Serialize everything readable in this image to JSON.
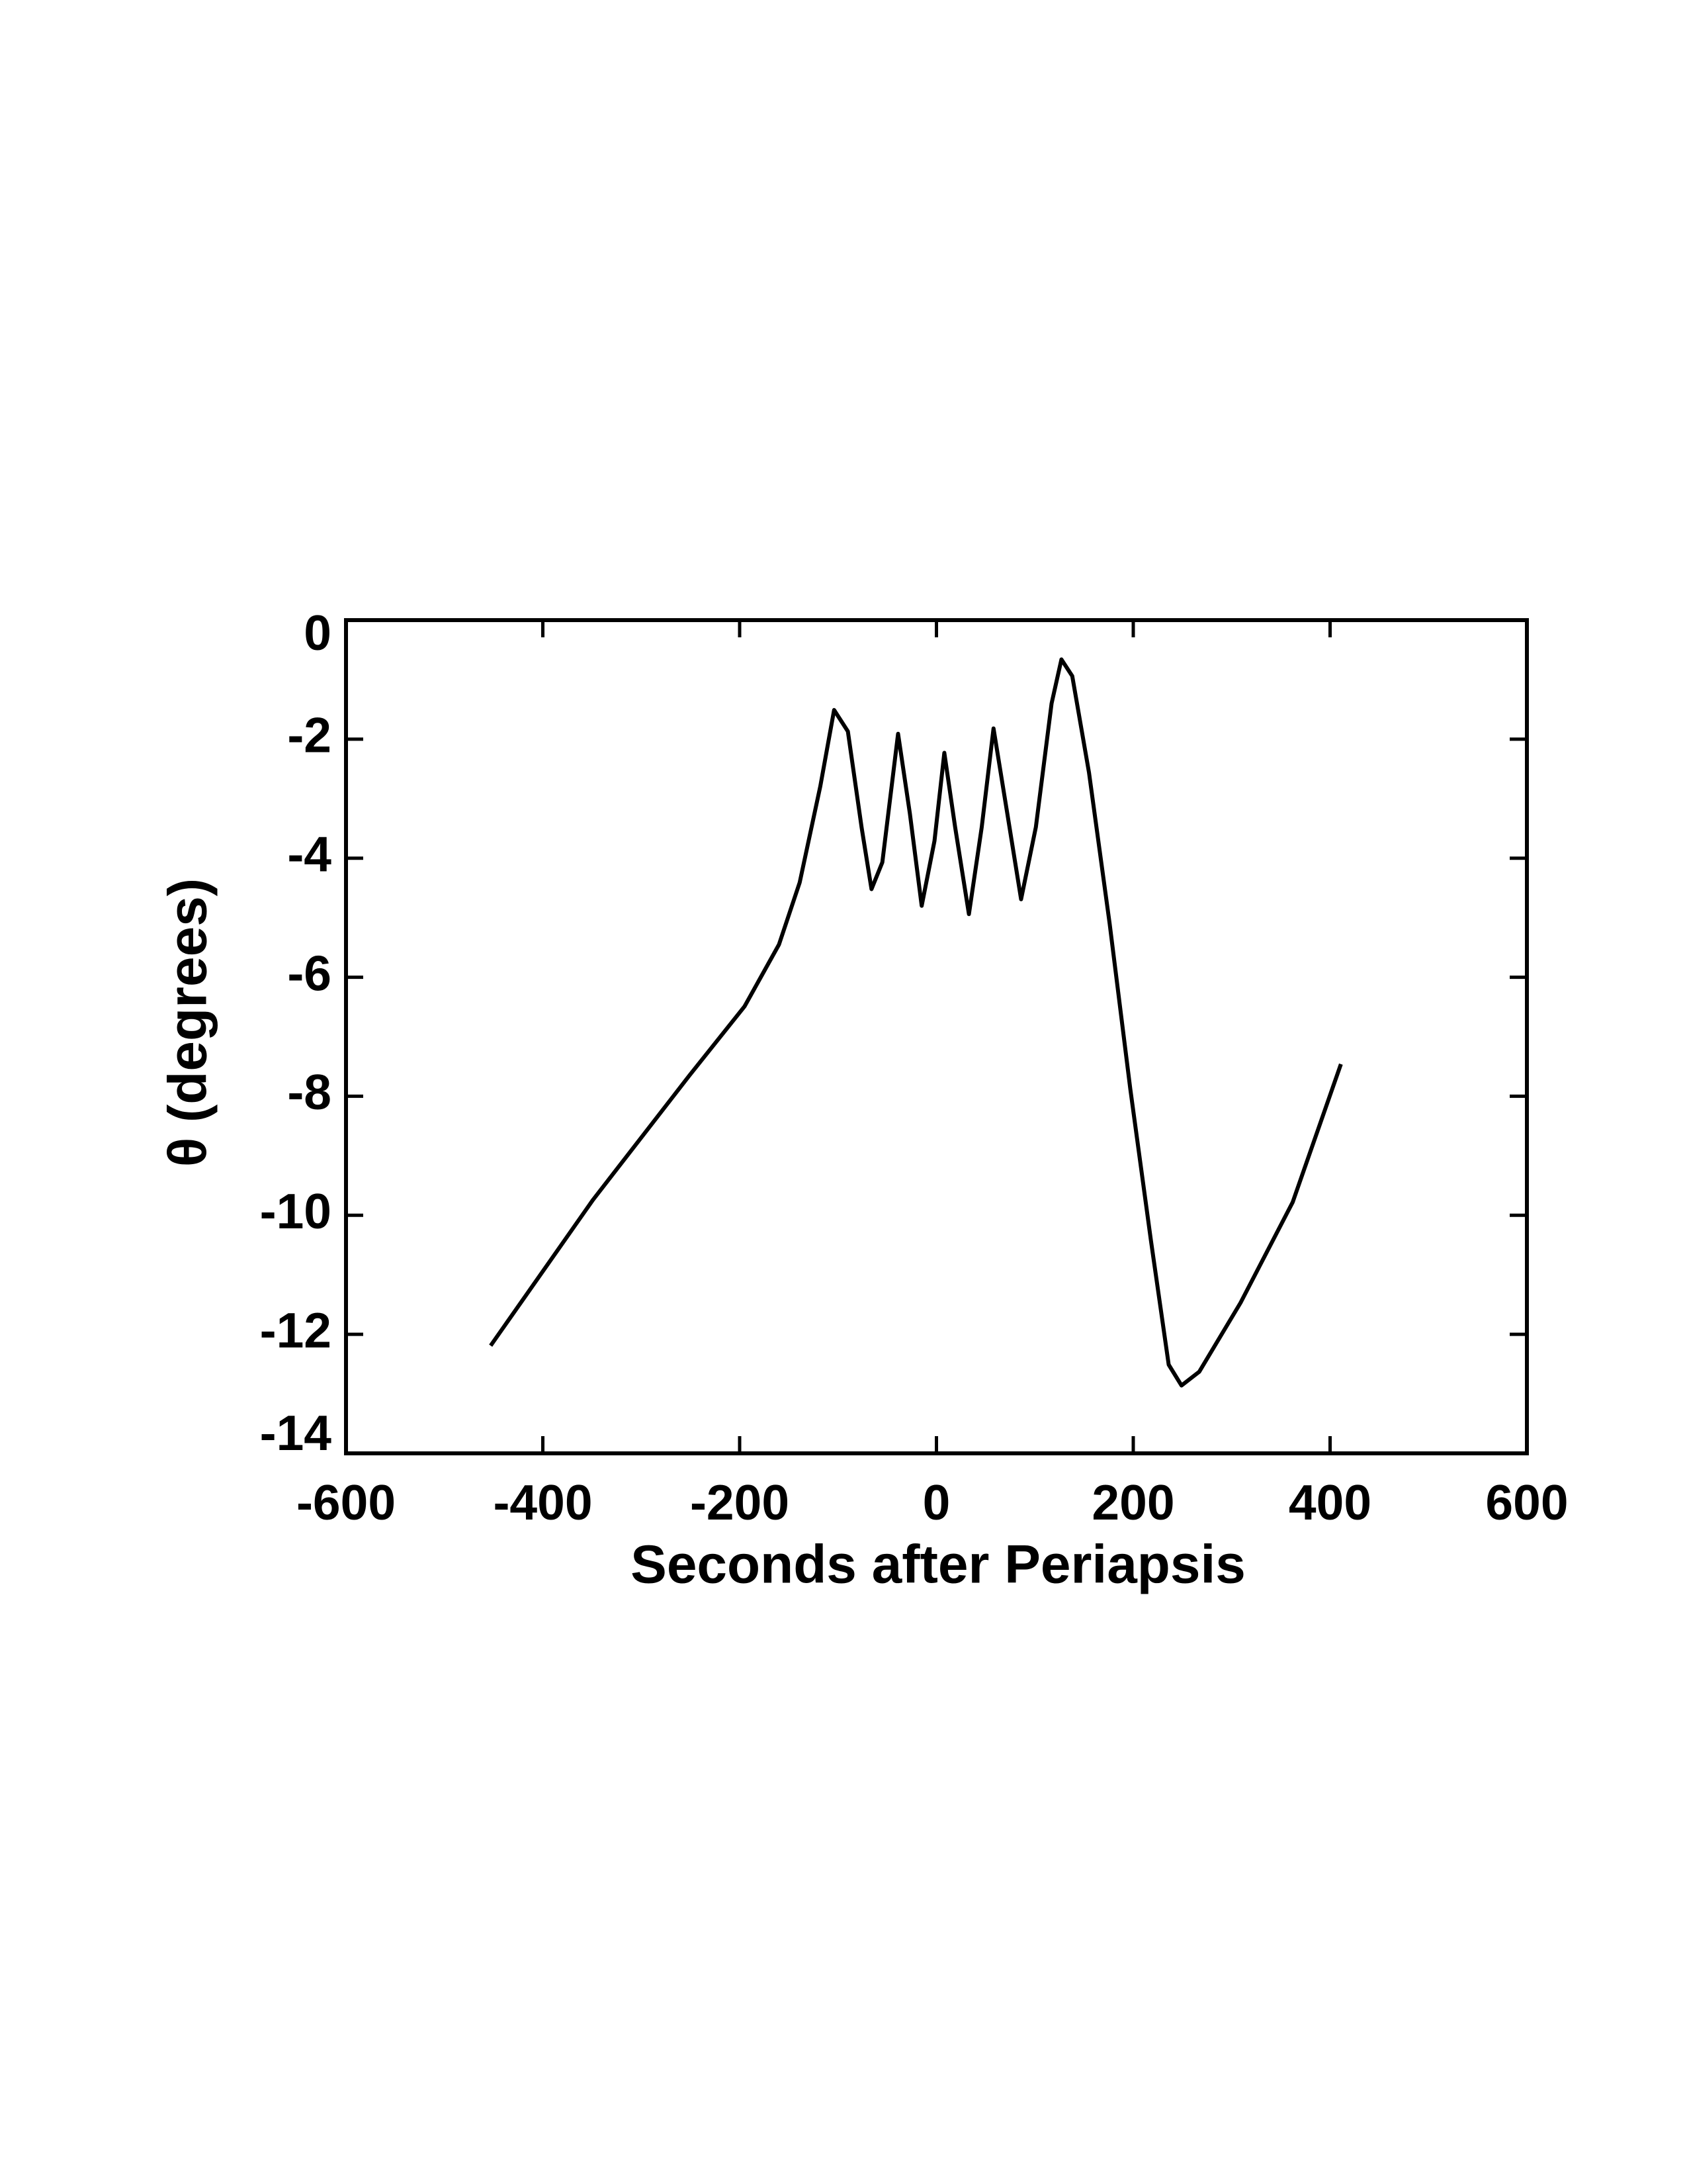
{
  "chart_data": {
    "type": "line",
    "x_label": "Seconds after Periapsis",
    "y_label": "θ (degrees)",
    "xlim": [
      -600,
      600
    ],
    "xticks": [
      -600,
      -400,
      -200,
      0,
      200,
      400,
      600
    ],
    "ylim": [
      -14,
      0
    ],
    "yticks": [
      0,
      -2,
      -4,
      -6,
      -8,
      -10,
      -12,
      -14
    ],
    "grid": false,
    "series": [
      {
        "color": "#000000",
        "x": [
          -453,
          -349,
          -251,
          -195,
          -160,
          -139,
          -118,
          -104,
          -90,
          -76,
          -66,
          -55,
          -39,
          -27,
          -15,
          -2,
          8,
          19,
          33,
          46,
          58,
          72,
          86,
          101,
          117,
          127,
          138,
          155,
          176,
          197,
          218,
          236,
          249,
          267,
          309,
          362,
          411
        ],
        "values": [
          -12.19,
          -9.74,
          -7.65,
          -6.49,
          -5.45,
          -4.41,
          -2.79,
          -1.51,
          -1.87,
          -3.49,
          -4.52,
          -4.07,
          -1.91,
          -3.25,
          -4.8,
          -3.71,
          -2.23,
          -3.48,
          -4.94,
          -3.48,
          -1.82,
          -3.25,
          -4.69,
          -3.48,
          -1.4,
          -0.66,
          -0.94,
          -2.56,
          -5.1,
          -7.88,
          -10.43,
          -12.51,
          -12.86,
          -12.63,
          -11.47,
          -9.78,
          -7.46
        ]
      }
    ]
  }
}
